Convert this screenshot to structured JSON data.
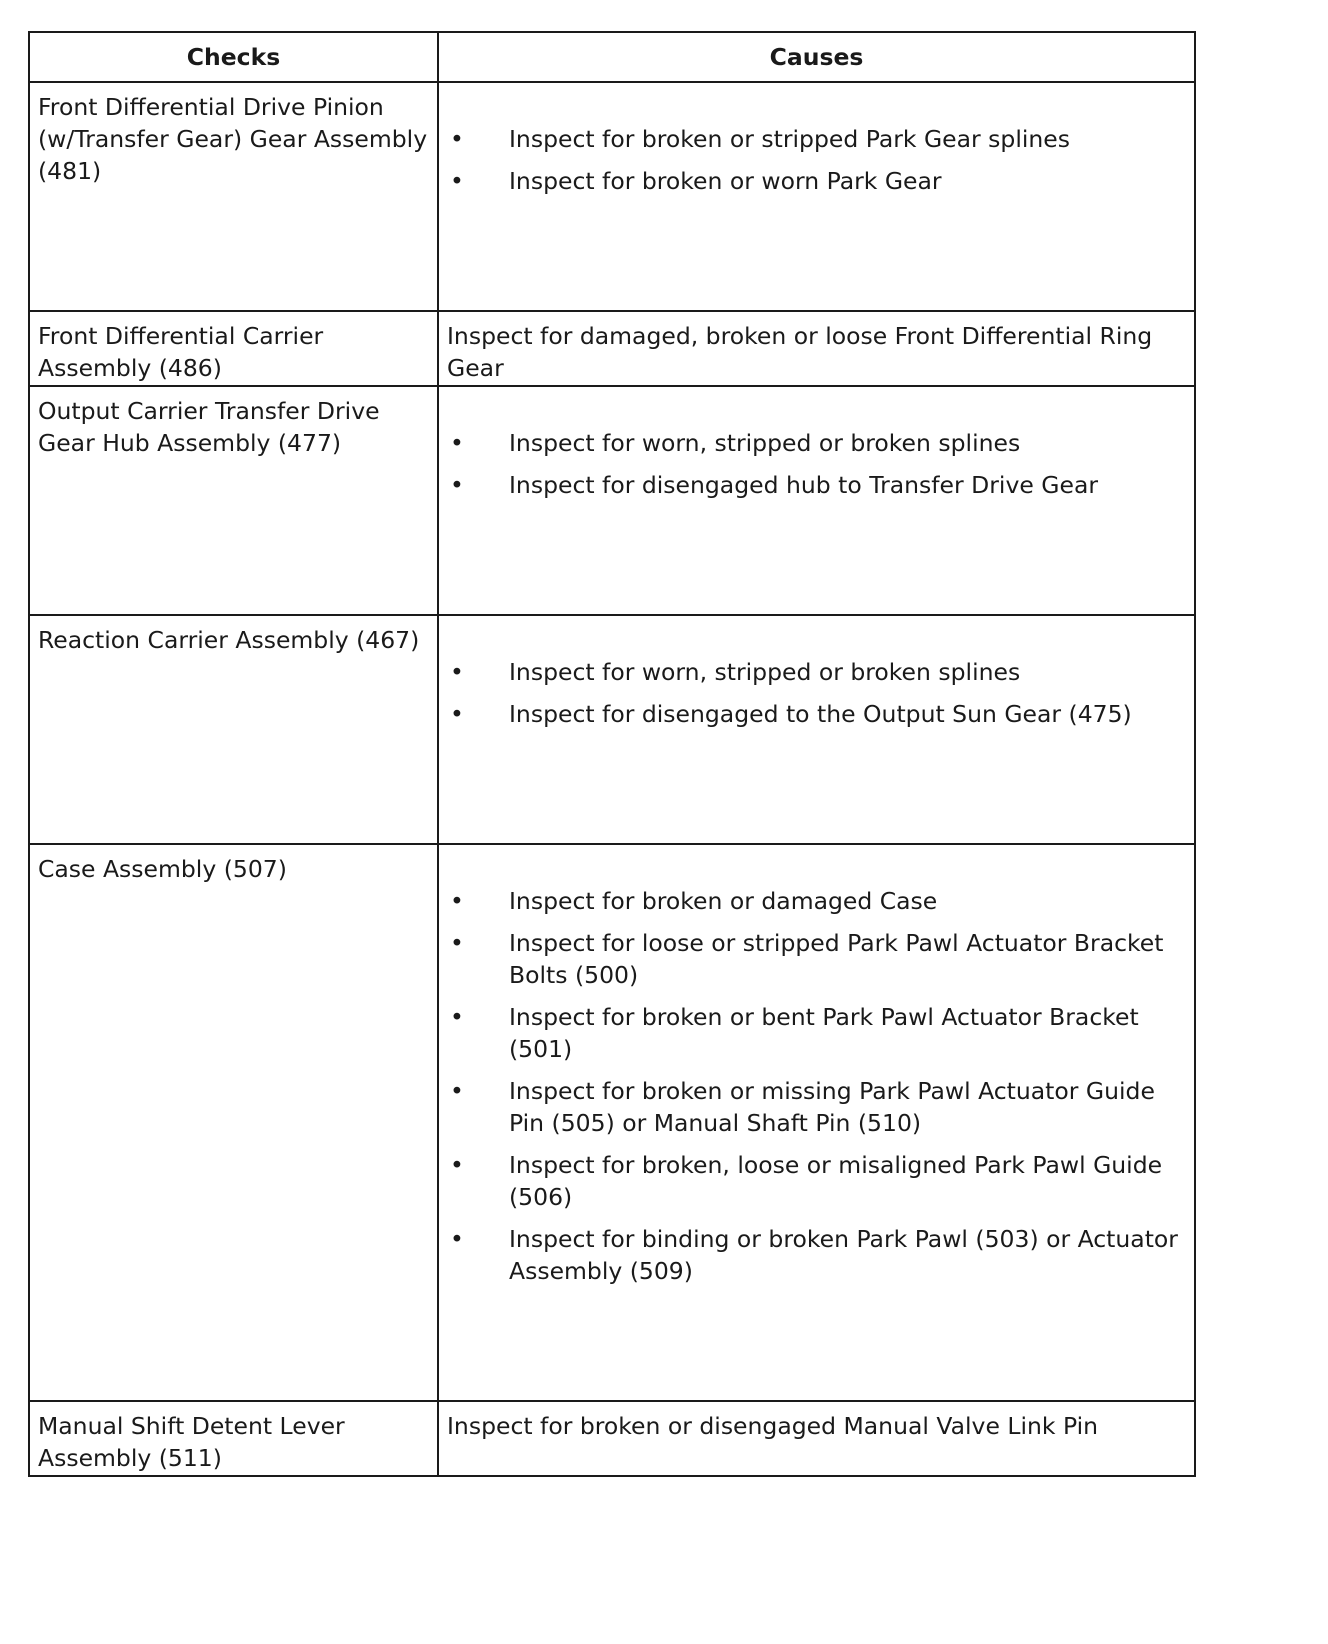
{
  "headers": {
    "checks": "Checks",
    "causes": "Causes"
  },
  "rows": [
    {
      "check": "Front Differential Drive Pinion (w/Transfer Gear) Gear Assembly (481)",
      "causes": [
        "Inspect for broken or stripped Park Gear splines",
        "Inspect for broken or worn Park Gear"
      ]
    },
    {
      "check": "Front Differential Carrier Assembly (486)",
      "cause_text": "Inspect for damaged, broken or loose Front Differential Ring Gear"
    },
    {
      "check": "Output Carrier Transfer Drive Gear Hub Assembly (477)",
      "causes": [
        "Inspect for worn, stripped or broken splines",
        "Inspect for disengaged hub to Transfer Drive Gear"
      ]
    },
    {
      "check": "Reaction Carrier Assembly (467)",
      "causes": [
        "Inspect for worn, stripped or broken splines",
        "Inspect for disengaged to the Output Sun Gear (475)"
      ]
    },
    {
      "check": "Case Assembly (507)",
      "causes": [
        "Inspect for broken or damaged Case",
        "Inspect for loose or stripped Park Pawl Actuator Bracket Bolts (500)",
        "Inspect for broken or bent Park Pawl Actuator Bracket (501)",
        "Inspect for broken or missing Park Pawl Actuator Guide Pin (505) or Manual Shaft Pin (510)",
        "Inspect for broken, loose or misaligned Park Pawl Guide (506)",
        "Inspect for binding or broken Park Pawl (503) or Actuator Assembly (509)"
      ]
    },
    {
      "check": "Manual Shift Detent Lever Assembly (511)",
      "cause_text": "Inspect for broken or disengaged Manual Valve Link Pin"
    }
  ]
}
